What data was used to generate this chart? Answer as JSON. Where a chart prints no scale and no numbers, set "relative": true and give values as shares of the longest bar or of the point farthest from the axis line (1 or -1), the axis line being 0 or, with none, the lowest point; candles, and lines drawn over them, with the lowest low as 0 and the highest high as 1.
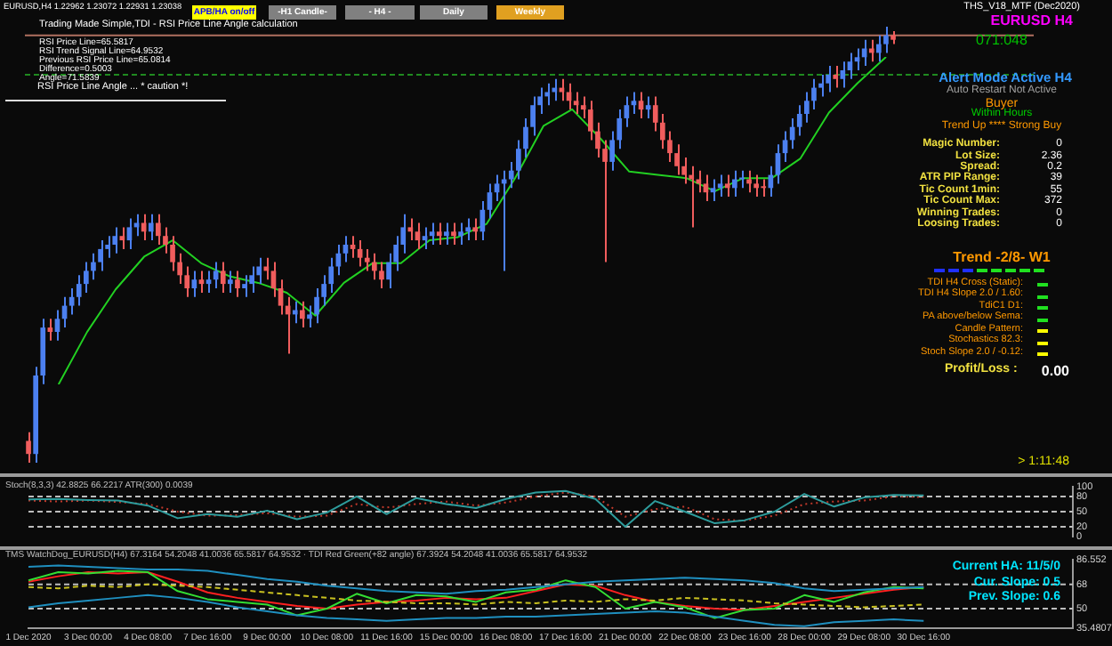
{
  "chart_data": [
    {
      "type": "candlestick",
      "title": "EURUSD,H4  1.22962 1.23072 1.22931 1.23038",
      "relative": true,
      "tick_labels": false,
      "categories": [
        null,
        null,
        null,
        null,
        null,
        null,
        null,
        null,
        null,
        null,
        null,
        null,
        null,
        null,
        null,
        null,
        null,
        null,
        null,
        null,
        null,
        null,
        null,
        null,
        null,
        null,
        null,
        null,
        null,
        null,
        null,
        null,
        null,
        null,
        null,
        null,
        null,
        null,
        null,
        null,
        null,
        null,
        null,
        null,
        null,
        null,
        null,
        null,
        null,
        null,
        null,
        null,
        null,
        null,
        null,
        null,
        null,
        null,
        null,
        null,
        null,
        null,
        null,
        null,
        null,
        null,
        null,
        null,
        null,
        null,
        null,
        null,
        null,
        null,
        null,
        null,
        null,
        null,
        null,
        null,
        null,
        null,
        null,
        null,
        null,
        null,
        null,
        null,
        null,
        null,
        null,
        null,
        null,
        null,
        null,
        null,
        null,
        null,
        null,
        null,
        null,
        null,
        null,
        null,
        null,
        null,
        null,
        null,
        null,
        null,
        null,
        null,
        null,
        null,
        null,
        null,
        null,
        null,
        null,
        null,
        null
      ],
      "ohlc": [
        [
          0.05,
          0.07,
          0.0,
          0.02
        ],
        [
          0.02,
          0.22,
          0.0,
          0.2
        ],
        [
          0.2,
          0.33,
          0.18,
          0.31
        ],
        [
          0.31,
          0.33,
          0.28,
          0.3
        ],
        [
          0.3,
          0.35,
          0.28,
          0.33
        ],
        [
          0.33,
          0.38,
          0.31,
          0.36
        ],
        [
          0.36,
          0.4,
          0.34,
          0.38
        ],
        [
          0.38,
          0.43,
          0.36,
          0.41
        ],
        [
          0.41,
          0.46,
          0.39,
          0.44
        ],
        [
          0.44,
          0.48,
          0.42,
          0.46
        ],
        [
          0.46,
          0.51,
          0.44,
          0.49
        ],
        [
          0.49,
          0.52,
          0.47,
          0.5
        ],
        [
          0.5,
          0.54,
          0.48,
          0.52
        ],
        [
          0.52,
          0.54,
          0.49,
          0.51
        ],
        [
          0.51,
          0.56,
          0.49,
          0.54
        ],
        [
          0.54,
          0.57,
          0.52,
          0.55
        ],
        [
          0.55,
          0.57,
          0.51,
          0.53
        ],
        [
          0.53,
          0.57,
          0.51,
          0.55
        ],
        [
          0.55,
          0.57,
          0.5,
          0.52
        ],
        [
          0.52,
          0.54,
          0.48,
          0.5
        ],
        [
          0.5,
          0.52,
          0.44,
          0.46
        ],
        [
          0.46,
          0.48,
          0.41,
          0.43
        ],
        [
          0.43,
          0.45,
          0.38,
          0.4
        ],
        [
          0.4,
          0.44,
          0.38,
          0.42
        ],
        [
          0.42,
          0.44,
          0.39,
          0.41
        ],
        [
          0.41,
          0.44,
          0.39,
          0.42
        ],
        [
          0.42,
          0.46,
          0.4,
          0.44
        ],
        [
          0.44,
          0.46,
          0.39,
          0.41
        ],
        [
          0.41,
          0.44,
          0.39,
          0.42
        ],
        [
          0.42,
          0.44,
          0.38,
          0.4
        ],
        [
          0.4,
          0.43,
          0.38,
          0.41
        ],
        [
          0.41,
          0.45,
          0.39,
          0.43
        ],
        [
          0.43,
          0.47,
          0.41,
          0.45
        ],
        [
          0.45,
          0.47,
          0.42,
          0.44
        ],
        [
          0.44,
          0.46,
          0.38,
          0.4
        ],
        [
          0.4,
          0.42,
          0.34,
          0.36
        ],
        [
          0.36,
          0.38,
          0.25,
          0.34
        ],
        [
          0.34,
          0.37,
          0.32,
          0.35
        ],
        [
          0.35,
          0.37,
          0.31,
          0.33
        ],
        [
          0.33,
          0.36,
          0.31,
          0.34
        ],
        [
          0.34,
          0.4,
          0.32,
          0.38
        ],
        [
          0.38,
          0.43,
          0.36,
          0.41
        ],
        [
          0.41,
          0.47,
          0.39,
          0.45
        ],
        [
          0.45,
          0.5,
          0.43,
          0.48
        ],
        [
          0.48,
          0.52,
          0.46,
          0.5
        ],
        [
          0.5,
          0.52,
          0.47,
          0.49
        ],
        [
          0.49,
          0.51,
          0.45,
          0.47
        ],
        [
          0.47,
          0.49,
          0.44,
          0.46
        ],
        [
          0.46,
          0.48,
          0.42,
          0.44
        ],
        [
          0.44,
          0.46,
          0.4,
          0.42
        ],
        [
          0.42,
          0.48,
          0.4,
          0.46
        ],
        [
          0.46,
          0.52,
          0.44,
          0.5
        ],
        [
          0.5,
          0.57,
          0.48,
          0.54
        ],
        [
          0.54,
          0.56,
          0.51,
          0.53
        ],
        [
          0.53,
          0.55,
          0.49,
          0.51
        ],
        [
          0.51,
          0.54,
          0.49,
          0.52
        ],
        [
          0.52,
          0.55,
          0.5,
          0.53
        ],
        [
          0.53,
          0.55,
          0.5,
          0.52
        ],
        [
          0.52,
          0.55,
          0.5,
          0.53
        ],
        [
          0.53,
          0.55,
          0.5,
          0.52
        ],
        [
          0.52,
          0.55,
          0.5,
          0.53
        ],
        [
          0.53,
          0.56,
          0.51,
          0.54
        ],
        [
          0.54,
          0.56,
          0.51,
          0.53
        ],
        [
          0.53,
          0.6,
          0.51,
          0.58
        ],
        [
          0.58,
          0.64,
          0.56,
          0.62
        ],
        [
          0.62,
          0.66,
          0.6,
          0.64
        ],
        [
          0.64,
          0.67,
          0.44,
          0.65
        ],
        [
          0.65,
          0.69,
          0.63,
          0.67
        ],
        [
          0.67,
          0.74,
          0.65,
          0.72
        ],
        [
          0.72,
          0.79,
          0.7,
          0.77
        ],
        [
          0.77,
          0.84,
          0.75,
          0.82
        ],
        [
          0.82,
          0.86,
          0.8,
          0.84
        ],
        [
          0.84,
          0.87,
          0.82,
          0.85
        ],
        [
          0.85,
          0.88,
          0.83,
          0.86
        ],
        [
          0.86,
          0.88,
          0.83,
          0.85
        ],
        [
          0.85,
          0.87,
          0.81,
          0.83
        ],
        [
          0.83,
          0.85,
          0.8,
          0.82
        ],
        [
          0.82,
          0.84,
          0.79,
          0.81
        ],
        [
          0.81,
          0.83,
          0.74,
          0.76
        ],
        [
          0.76,
          0.78,
          0.7,
          0.72
        ],
        [
          0.72,
          0.74,
          0.46,
          0.69
        ],
        [
          0.69,
          0.76,
          0.67,
          0.74
        ],
        [
          0.74,
          0.81,
          0.72,
          0.79
        ],
        [
          0.79,
          0.84,
          0.77,
          0.82
        ],
        [
          0.82,
          0.85,
          0.8,
          0.83
        ],
        [
          0.83,
          0.85,
          0.79,
          0.81
        ],
        [
          0.81,
          0.84,
          0.79,
          0.82
        ],
        [
          0.82,
          0.84,
          0.76,
          0.78
        ],
        [
          0.78,
          0.8,
          0.72,
          0.74
        ],
        [
          0.74,
          0.76,
          0.69,
          0.71
        ],
        [
          0.71,
          0.73,
          0.66,
          0.68
        ],
        [
          0.68,
          0.7,
          0.64,
          0.66
        ],
        [
          0.66,
          0.68,
          0.54,
          0.65
        ],
        [
          0.65,
          0.67,
          0.62,
          0.64
        ],
        [
          0.64,
          0.66,
          0.6,
          0.62
        ],
        [
          0.62,
          0.65,
          0.6,
          0.63
        ],
        [
          0.63,
          0.66,
          0.61,
          0.64
        ],
        [
          0.64,
          0.66,
          0.61,
          0.63
        ],
        [
          0.63,
          0.67,
          0.61,
          0.65
        ],
        [
          0.65,
          0.67,
          0.63,
          0.65
        ],
        [
          0.65,
          0.67,
          0.62,
          0.64
        ],
        [
          0.64,
          0.66,
          0.61,
          0.63
        ],
        [
          0.63,
          0.65,
          0.61,
          0.63
        ],
        [
          0.63,
          0.68,
          0.61,
          0.66
        ],
        [
          0.66,
          0.73,
          0.64,
          0.71
        ],
        [
          0.71,
          0.76,
          0.69,
          0.74
        ],
        [
          0.74,
          0.79,
          0.72,
          0.77
        ],
        [
          0.77,
          0.82,
          0.75,
          0.8
        ],
        [
          0.8,
          0.85,
          0.78,
          0.83
        ],
        [
          0.83,
          0.88,
          0.81,
          0.86
        ],
        [
          0.86,
          0.89,
          0.84,
          0.87
        ],
        [
          0.87,
          0.91,
          0.85,
          0.89
        ],
        [
          0.89,
          0.91,
          0.86,
          0.88
        ],
        [
          0.88,
          0.92,
          0.86,
          0.9
        ],
        [
          0.9,
          0.94,
          0.88,
          0.92
        ],
        [
          0.92,
          0.95,
          0.9,
          0.93
        ],
        [
          0.93,
          0.97,
          0.91,
          0.95
        ],
        [
          0.95,
          0.97,
          0.92,
          0.94
        ],
        [
          0.94,
          0.98,
          0.92,
          0.96
        ],
        [
          0.96,
          1.0,
          0.94,
          0.98
        ],
        [
          0.98,
          0.99,
          0.96,
          0.97
        ]
      ],
      "colors": [
        "#f05d5d",
        "#4c80f0",
        "#4c80f0",
        "#f05d5d",
        "#4c80f0",
        "#4c80f0",
        "#4c80f0",
        "#4c80f0",
        "#4c80f0",
        "#4c80f0",
        "#4c80f0",
        "#4c80f0",
        "#4c80f0",
        "#f05d5d",
        "#4c80f0",
        "#4c80f0",
        "#f05d5d",
        "#4c80f0",
        "#f05d5d",
        "#f05d5d",
        "#f05d5d",
        "#f05d5d",
        "#f05d5d",
        "#4c80f0",
        "#f05d5d",
        "#4c80f0",
        "#4c80f0",
        "#f05d5d",
        "#4c80f0",
        "#f05d5d",
        "#4c80f0",
        "#4c80f0",
        "#4c80f0",
        "#f05d5d",
        "#f05d5d",
        "#f05d5d",
        "#f05d5d",
        "#4c80f0",
        "#f05d5d",
        "#4c80f0",
        "#4c80f0",
        "#4c80f0",
        "#4c80f0",
        "#4c80f0",
        "#4c80f0",
        "#f05d5d",
        "#f05d5d",
        "#f05d5d",
        "#f05d5d",
        "#f05d5d",
        "#4c80f0",
        "#4c80f0",
        "#4c80f0",
        "#f05d5d",
        "#f05d5d",
        "#4c80f0",
        "#4c80f0",
        "#f05d5d",
        "#4c80f0",
        "#f05d5d",
        "#4c80f0",
        "#4c80f0",
        "#f05d5d",
        "#4c80f0",
        "#4c80f0",
        "#4c80f0",
        "#4c80f0",
        "#4c80f0",
        "#4c80f0",
        "#4c80f0",
        "#4c80f0",
        "#4c80f0",
        "#4c80f0",
        "#4c80f0",
        "#f05d5d",
        "#f05d5d",
        "#f05d5d",
        "#f05d5d",
        "#f05d5d",
        "#f05d5d",
        "#f05d5d",
        "#4c80f0",
        "#4c80f0",
        "#4c80f0",
        "#4c80f0",
        "#f05d5d",
        "#4c80f0",
        "#f05d5d",
        "#f05d5d",
        "#f05d5d",
        "#f05d5d",
        "#f05d5d",
        "#f05d5d",
        "#f05d5d",
        "#f05d5d",
        "#4c80f0",
        "#4c80f0",
        "#f05d5d",
        "#4c80f0",
        "#4c80f0",
        "#f05d5d",
        "#f05d5d",
        "#f05d5d",
        "#4c80f0",
        "#4c80f0",
        "#4c80f0",
        "#4c80f0",
        "#4c80f0",
        "#4c80f0",
        "#4c80f0",
        "#4c80f0",
        "#4c80f0",
        "#f05d5d",
        "#4c80f0",
        "#4c80f0",
        "#4c80f0",
        "#4c80f0",
        "#f05d5d",
        "#4c80f0",
        "#4c80f0",
        "#f05d5d"
      ],
      "ref_lines": [
        {
          "axis": "y",
          "value": 0.98,
          "color": "#b07060"
        },
        {
          "axis": "y",
          "value": 0.89,
          "color": "#1f8a1f",
          "line_style": "dashed"
        }
      ],
      "annotations": [
        "Trading Made Simple,TDI - RSI Price Line Angle calculation",
        "RSI Price Line=65.5817",
        "RSI Trend Signal Line=64.9532",
        "Previous RSI Price Line=65.0814",
        "Difference=0.5003",
        "Angle=71.5839",
        "RSI Price Line Angle ... * caution *!",
        "APB/HA on/off",
        "-H1 Candle-",
        "- H4 -",
        "Daily",
        "Weekly",
        "THS_V18_MTF (Dec2020)",
        "EURUSD H4",
        "071:048",
        "Alert Mode Active H4",
        "Auto Restart Not Active",
        "Buyer",
        "Within Hours",
        "Trend Up **** Strong Buy",
        "Magic Number:",
        "0",
        "Lot Size:",
        "2.36",
        "Spread:",
        "0.2",
        "ATR PIP Range:",
        "39",
        "Tic Count 1min:",
        "55",
        "Tic Count Max:",
        "372",
        "Winning Trades:",
        "0",
        "Loosing Trades:",
        "0",
        "Trend -2/8- W1",
        "TDI H4 Cross (Static):",
        "TDI H4 Slope 2.0 / 1.60:",
        "TdiC1 D1:",
        "PA above/below Sema:",
        "Candle Pattern:",
        "Stochastics 82.3:",
        "Stoch Slope 2.0 / -0.12:",
        "Profit/Loss :",
        "0.00",
        "> 1:11:48"
      ]
    },
    {
      "type": "line",
      "relative": true,
      "tick_labels": false,
      "categories": [
        null,
        null,
        null,
        null,
        null,
        null,
        null,
        null,
        null,
        null,
        null,
        null,
        null,
        null,
        null,
        null,
        null,
        null,
        null,
        null,
        null,
        null,
        null,
        null,
        null,
        null,
        null,
        null,
        null,
        null
      ],
      "series": [
        {
          "color": "#22d022",
          "values": [
            0,
            0.16,
            0.29,
            0.39,
            0.44,
            0.37,
            0.33,
            0.31,
            0.28,
            0.21,
            0.31,
            0.37,
            0.37,
            0.44,
            0.45,
            0.49,
            0.63,
            0.79,
            0.84,
            0.75,
            0.65,
            0.64,
            0.63,
            0.59,
            0.63,
            0.63,
            0.69,
            0.83,
            0.92,
            1
          ]
        }
      ]
    },
    {
      "type": "line",
      "tick_labels": "y",
      "ylim": [
        0,
        100
      ],
      "yticks": [
        0,
        20,
        50,
        80,
        100
      ],
      "categories": [
        null,
        null,
        null,
        null,
        null,
        null,
        null,
        null,
        null,
        null,
        null,
        null,
        null,
        null,
        null,
        null,
        null,
        null,
        null,
        null,
        null,
        null,
        null,
        null,
        null,
        null,
        null,
        null,
        null,
        null,
        null
      ],
      "series": [
        {
          "color": "#2e9c9c",
          "values": [
            74,
            75,
            73,
            72,
            62,
            37,
            45,
            40,
            52,
            35,
            48,
            80,
            45,
            77,
            65,
            57,
            75,
            88,
            91,
            75,
            20,
            71,
            50,
            27,
            33,
            50,
            85,
            60,
            78,
            83,
            82
          ]
        },
        {
          "color": "#c0392b",
          "line_style": "dotted",
          "values": [
            72,
            70,
            72,
            69,
            65,
            50,
            42,
            43,
            47,
            40,
            42,
            65,
            58,
            65,
            70,
            62,
            68,
            80,
            88,
            80,
            40,
            55,
            60,
            35,
            32,
            42,
            65,
            70,
            72,
            80,
            79
          ]
        }
      ],
      "ref_lines": [
        {
          "axis": "y",
          "value": 80,
          "color": "#bdbdbd",
          "line_style": "dashed"
        },
        {
          "axis": "y",
          "value": 50,
          "color": "#bdbdbd",
          "line_style": "dashed"
        },
        {
          "axis": "y",
          "value": 20,
          "color": "#bdbdbd",
          "line_style": "dashed"
        }
      ],
      "annotations": [
        "Stoch(8,3,3) 42.8825 66.2217  ATR(300) 0.0039"
      ]
    },
    {
      "type": "line",
      "ylim": [
        35.4807,
        86.552
      ],
      "yticks": [
        {
          "value": 35.4807,
          "label": "35.4807"
        },
        50,
        68,
        {
          "value": 86.552,
          "label": "86.552"
        }
      ],
      "categories": [
        "1 Dec 2020",
        null,
        "3 Dec 00:00",
        null,
        "4 Dec 08:00",
        null,
        "7 Dec 16:00",
        null,
        "9 Dec 00:00",
        null,
        "10 Dec 08:00",
        null,
        "11 Dec 16:00",
        null,
        "15 Dec 00:00",
        null,
        "16 Dec 08:00",
        null,
        "17 Dec 16:00",
        null,
        "21 Dec 00:00",
        null,
        "22 Dec 08:00",
        null,
        "23 Dec 16:00",
        null,
        "28 Dec 00:00",
        null,
        "29 Dec 08:00",
        null,
        "30 Dec 16:00"
      ],
      "series": [
        {
          "color": "#1f8fbf",
          "values": [
            81,
            82,
            81,
            80,
            79,
            79,
            78,
            75,
            72,
            70,
            67,
            65,
            63,
            62,
            61,
            63,
            64,
            66,
            68,
            70,
            71,
            72,
            73,
            72,
            71,
            69,
            65,
            63,
            64,
            65,
            66
          ]
        },
        {
          "color": "#1f8fbf",
          "values": [
            51,
            54,
            56,
            58,
            60,
            58,
            55,
            51,
            48,
            45,
            43,
            42,
            41,
            42,
            43,
            43,
            44,
            44,
            45,
            46,
            47,
            48,
            47,
            44,
            41,
            38,
            37,
            40,
            41,
            42,
            41
          ]
        },
        {
          "color": "#c8c020",
          "line_style": "dashed",
          "values": [
            66,
            65,
            67,
            66,
            68,
            67,
            66,
            64,
            62,
            60,
            58,
            56,
            55,
            54,
            54,
            53,
            55,
            54,
            56,
            55,
            57,
            56,
            58,
            57,
            56,
            54,
            53,
            52,
            51,
            52,
            53
          ]
        },
        {
          "color": "#33dd33",
          "values": [
            71,
            77,
            76,
            78,
            77,
            63,
            57,
            55,
            53,
            45,
            50,
            61,
            54,
            60,
            59,
            55,
            62,
            64,
            71,
            66,
            50,
            55,
            51,
            43,
            49,
            50,
            60,
            55,
            62,
            66,
            65
          ]
        },
        {
          "color": "#ff2020",
          "values": [
            70,
            74,
            77,
            76,
            77,
            70,
            62,
            58,
            55,
            52,
            50,
            53,
            55,
            56,
            58,
            57,
            58,
            63,
            68,
            67,
            60,
            55,
            52,
            50,
            49,
            52,
            55,
            58,
            61,
            64,
            66
          ]
        }
      ],
      "ref_lines": [
        {
          "axis": "y",
          "value": 68,
          "color": "#bdbdbd",
          "line_style": "dashed"
        },
        {
          "axis": "y",
          "value": 50,
          "color": "#bdbdbd",
          "line_style": "dashed"
        }
      ],
      "annotations": [
        "TMS WatchDog_EURUSD(H4) 67.3164 54.2048 41.0036 65.5817 64.9532 · TDI Red Green(+82 angle) 67.3924 54.2048 41.0036 65.5817 64.9532",
        "Current HA: 11/5/0",
        "Cur. Slope: 0.5",
        "Prev. Slope: 0.6"
      ]
    }
  ]
}
